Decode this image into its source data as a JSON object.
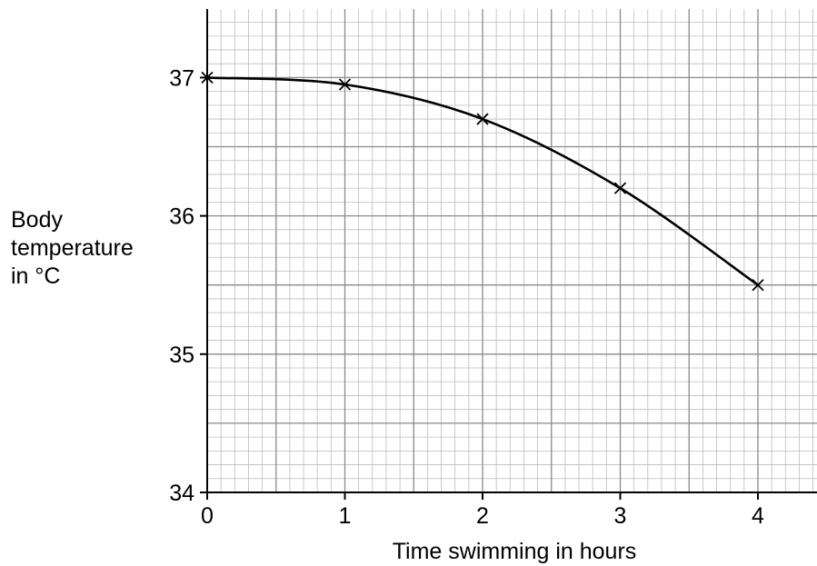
{
  "chart_data": {
    "type": "line",
    "title": "",
    "xlabel": "Time swimming in hours",
    "ylabel_lines": [
      "Body",
      "temperature",
      "in °C"
    ],
    "x": [
      0,
      1,
      2,
      3,
      4
    ],
    "series": [
      {
        "values": [
          37.0,
          36.95,
          36.7,
          36.2,
          35.5
        ]
      }
    ],
    "xlim": [
      0,
      4.45
    ],
    "ylim": [
      34,
      37.5
    ],
    "xticks": [
      "0",
      "1",
      "2",
      "3",
      "4"
    ],
    "yticks": [
      "34",
      "35",
      "36",
      "37"
    ],
    "grid": true,
    "grid_minor_per_major": 10,
    "marker": "x",
    "line_color": "#000000",
    "grid_major_color": "#8a8a8a",
    "grid_minor_color": "#bdbdbd"
  }
}
